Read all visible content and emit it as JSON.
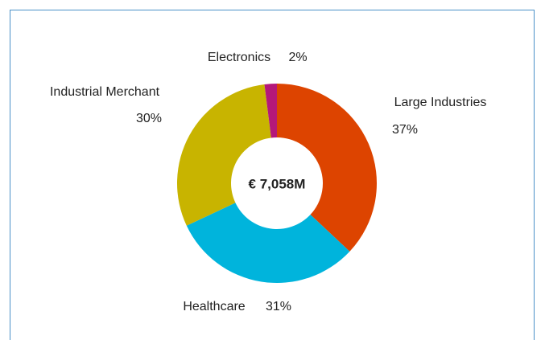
{
  "chart_data": {
    "type": "pie",
    "categories": [
      "Large Industries",
      "Healthcare",
      "Industrial Merchant",
      "Electronics"
    ],
    "values": [
      37,
      31,
      30,
      2
    ],
    "value_labels": [
      "37%",
      "31%",
      "30%",
      "2%"
    ],
    "colors": [
      "#dd4400",
      "#00b4dc",
      "#c8b400",
      "#b4187a"
    ],
    "center_label": "€ 7,058M"
  }
}
